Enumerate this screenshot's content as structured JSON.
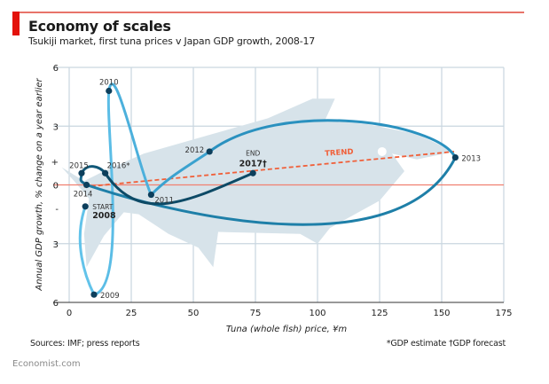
{
  "header": {
    "title": "Economy of scales",
    "subtitle": "Tsukiji market, first tuna prices v Japan GDP growth, 2008-17"
  },
  "footer": {
    "sources": "Sources: IMF; press reports",
    "notes": "*GDP estimate  †GDP forecast",
    "brand": "Economist.com"
  },
  "colors": {
    "accent_red": "#e3120b",
    "trend": "#f0603a",
    "zero_line": "#f08070",
    "grid": "#c9d6df",
    "fish": "#d7e3ea",
    "series_start": "#5bbde6",
    "series_mid": "#1e87b0",
    "series_end": "#0b4a66",
    "dot": "#0d3f5c"
  },
  "chart_data": {
    "type": "scatter",
    "title": "Economy of scales",
    "subtitle": "Tsukiji market, first tuna prices v Japan GDP growth, 2008-17",
    "xlabel": "Tuna (whole fish) price, ¥m",
    "ylabel": "Annual GDP growth, % change on a year earlier",
    "xlim": [
      0,
      175
    ],
    "ylim": [
      -6,
      6
    ],
    "xticks": [
      0,
      25,
      50,
      75,
      100,
      125,
      150,
      175
    ],
    "xtick_labels": [
      "0",
      "25",
      "50",
      "75",
      "100",
      "125",
      "150",
      "175"
    ],
    "yticks": [
      6,
      3,
      1.2,
      0,
      -1.2,
      -3,
      -6
    ],
    "ytick_labels": [
      "6",
      "3",
      "+",
      "0",
      "-",
      "3",
      "6"
    ],
    "grid": true,
    "connected": true,
    "points": [
      {
        "year": "2008",
        "label": "2008",
        "note": "START",
        "x": 6.5,
        "y": -1.1
      },
      {
        "year": "2009",
        "label": "2009",
        "x": 10,
        "y": -5.6
      },
      {
        "year": "2010",
        "label": "2010",
        "x": 16,
        "y": 4.8
      },
      {
        "year": "2011",
        "label": "2011",
        "x": 33,
        "y": -0.5
      },
      {
        "year": "2012",
        "label": "2012",
        "x": 56.5,
        "y": 1.7
      },
      {
        "year": "2013",
        "label": "2013",
        "x": 155.5,
        "y": 1.4
      },
      {
        "year": "2014",
        "label": "2014",
        "x": 7,
        "y": 0.0
      },
      {
        "year": "2015",
        "label": "2015",
        "x": 5,
        "y": 0.6
      },
      {
        "year": "2016",
        "label": "2016*",
        "x": 14.5,
        "y": 0.6
      },
      {
        "year": "2017",
        "label": "2017†",
        "note": "END",
        "x": 74,
        "y": 0.6
      }
    ],
    "trend": {
      "label": "TREND",
      "from": {
        "x": 6,
        "y": -0.1
      },
      "to": {
        "x": 155,
        "y": 1.7
      }
    },
    "annotations": [
      "START",
      "END",
      "TREND",
      "*GDP estimate",
      "†GDP forecast"
    ]
  }
}
